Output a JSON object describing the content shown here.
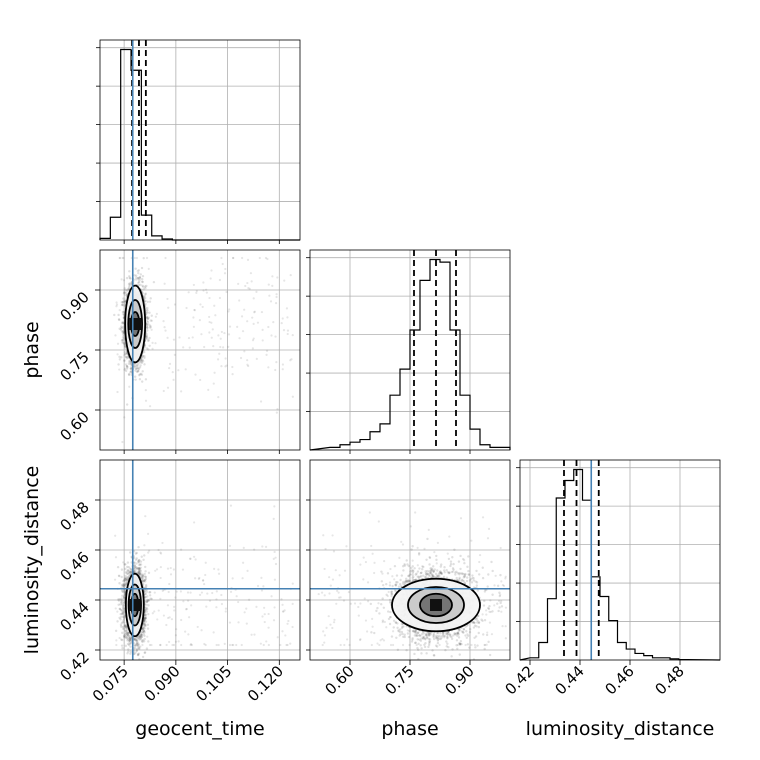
{
  "chart_data": {
    "type": "corner",
    "parameters": [
      {
        "name": "geocent_time",
        "range": [
          0.068,
          0.126
        ],
        "ticks": [
          0.075,
          0.09,
          0.105,
          0.12
        ],
        "tick_labels": [
          "0.075",
          "0.090",
          "0.105",
          "0.120"
        ],
        "truth": 0.0775,
        "quantiles": [
          0.0773,
          0.0793,
          0.0813
        ],
        "hist": {
          "edges": [
            0.068,
            0.071,
            0.074,
            0.077,
            0.08,
            0.083,
            0.086,
            0.089,
            0.092,
            0.095,
            0.126
          ],
          "counts": [
            0.8,
            11,
            92,
            82,
            12,
            2,
            0.5,
            0,
            0,
            0
          ]
        }
      },
      {
        "name": "phase",
        "range": [
          0.5,
          1.0
        ],
        "ticks": [
          0.6,
          0.75,
          0.9
        ],
        "tick_labels": [
          "0.60",
          "0.75",
          "0.90"
        ],
        "truth": null,
        "quantiles": [
          0.76,
          0.815,
          0.865
        ],
        "hist": {
          "edges": [
            0.55,
            0.575,
            0.6,
            0.625,
            0.65,
            0.675,
            0.7,
            0.725,
            0.75,
            0.775,
            0.8,
            0.825,
            0.85,
            0.875,
            0.9,
            0.925,
            0.95,
            0.975,
            1.0
          ],
          "counts": [
            1,
            2,
            3,
            4,
            7,
            10,
            21,
            31,
            46,
            65,
            73,
            72,
            46,
            21,
            8,
            2,
            1,
            1
          ]
        }
      },
      {
        "name": "luminosity_distance",
        "range": [
          0.416,
          0.496
        ],
        "ticks": [
          0.42,
          0.44,
          0.46,
          0.48
        ],
        "tick_labels": [
          "0.42",
          "0.44",
          "0.46",
          "0.48"
        ],
        "truth": 0.4445,
        "quantiles": [
          0.4336,
          0.4386,
          0.4475
        ],
        "hist": {
          "edges": [
            0.42,
            0.4235,
            0.427,
            0.4305,
            0.434,
            0.4375,
            0.441,
            0.4445,
            0.448,
            0.4515,
            0.455,
            0.4585,
            0.462,
            0.4655,
            0.469,
            0.4725,
            0.476,
            0.4795,
            0.483
          ],
          "counts": [
            1,
            8,
            28,
            74,
            82,
            87,
            73,
            38,
            29,
            18,
            8,
            5,
            3,
            2,
            1,
            1,
            0.5,
            0.2
          ]
        }
      }
    ],
    "pairs": [
      {
        "x": "geocent_time",
        "y": "phase",
        "truth": [
          0.0775,
          null
        ],
        "center": [
          0.0782,
          0.815
        ],
        "spread": [
          0.0015,
          0.048
        ],
        "scatter_x_range": [
          0.072,
          0.124
        ],
        "scatter_y_range": [
          0.52,
          0.98
        ],
        "levels": [
          [
            0.0029,
            0.096
          ],
          [
            0.002,
            0.06
          ],
          [
            0.0012,
            0.03
          ]
        ]
      },
      {
        "x": "geocent_time",
        "y": "luminosity_distance",
        "truth": [
          0.0775,
          0.4445
        ],
        "center": [
          0.0781,
          0.438
        ],
        "spread": [
          0.0015,
          0.007
        ],
        "scatter_x_range": [
          0.072,
          0.124
        ],
        "scatter_y_range": [
          0.422,
          0.49
        ],
        "levels": [
          [
            0.0026,
            0.0125
          ],
          [
            0.0018,
            0.0082
          ],
          [
            0.001,
            0.0045
          ]
        ]
      },
      {
        "x": "phase",
        "y": "luminosity_distance",
        "truth": [
          null,
          0.4445
        ],
        "center": [
          0.815,
          0.438
        ],
        "spread": [
          0.05,
          0.007
        ],
        "scatter_x_range": [
          0.52,
          0.99
        ],
        "scatter_y_range": [
          0.422,
          0.475
        ],
        "levels": [
          [
            0.11,
            0.0105
          ],
          [
            0.07,
            0.0072
          ],
          [
            0.04,
            0.0045
          ]
        ]
      }
    ],
    "xlabels": [
      "geocent_time",
      "phase",
      "luminosity_distance"
    ],
    "ylabels": [
      "",
      "phase",
      "luminosity_distance"
    ],
    "colors": {
      "truth": "#4682b4",
      "hist": "#000000",
      "scatter": "#555555",
      "grid": "#b0b0b0"
    },
    "grid": true
  }
}
